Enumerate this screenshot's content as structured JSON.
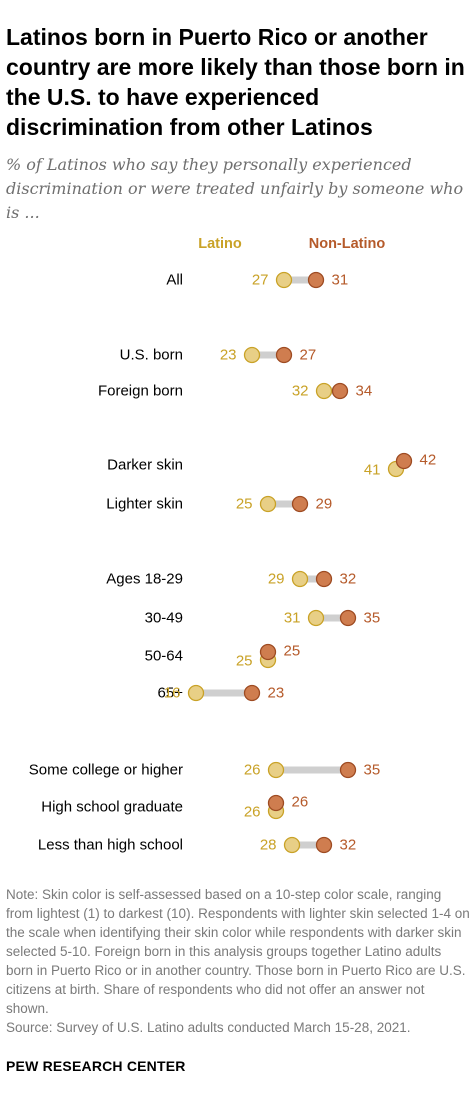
{
  "title": "Latinos born in Puerto Rico or another country are more likely than those born in the U.S. to have experienced discrimination from other Latinos",
  "subtitle": "% of Latinos who say they personally experienced discrimination or were treated unfairly by someone who is ...",
  "note": "Note: Skin color is self-assessed based on a 10-step color scale, ranging from lightest (1) to darkest (10). Respondents with lighter skin selected 1-4 on the scale when identifying their skin color while respondents with darker skin selected 5-10. Foreign born in this analysis groups together Latino adults born in Puerto Rico or in another country. Those born in Puerto Rico are U.S. citizens at birth. Share of respondents who did not offer an answer not shown.",
  "source": "Source: Survey of U.S. Latino adults conducted March 15-28, 2021.",
  "brand": "PEW RESEARCH CENTER",
  "colors": {
    "latino": "#e8cf86",
    "latino_text": "#c9a227",
    "non_latino": "#cf7d4f",
    "non_latino_text": "#b55a2a",
    "connector": "#cfcfcf"
  },
  "chart_data": {
    "type": "dot",
    "series": [
      {
        "name": "Latino",
        "values": [
          27,
          23,
          32,
          41,
          25,
          29,
          31,
          25,
          16,
          26,
          26,
          28
        ]
      },
      {
        "name": "Non-Latino",
        "values": [
          31,
          27,
          34,
          42,
          29,
          32,
          35,
          25,
          23,
          35,
          26,
          32
        ]
      }
    ],
    "categories": [
      "All",
      "U.S. born",
      "Foreign born",
      "Darker skin",
      "Lighter skin",
      "Ages 18-29",
      "30-49",
      "50-64",
      "65+",
      "Some college or higher",
      "High school graduate",
      "Less than high school"
    ],
    "groups": [
      [
        "All"
      ],
      [
        "U.S. born",
        "Foreign born"
      ],
      [
        "Darker skin",
        "Lighter skin"
      ],
      [
        "Ages 18-29",
        "30-49",
        "50-64",
        "65+"
      ],
      [
        "Some college or higher",
        "High school graduate",
        "Less than high school"
      ]
    ]
  }
}
